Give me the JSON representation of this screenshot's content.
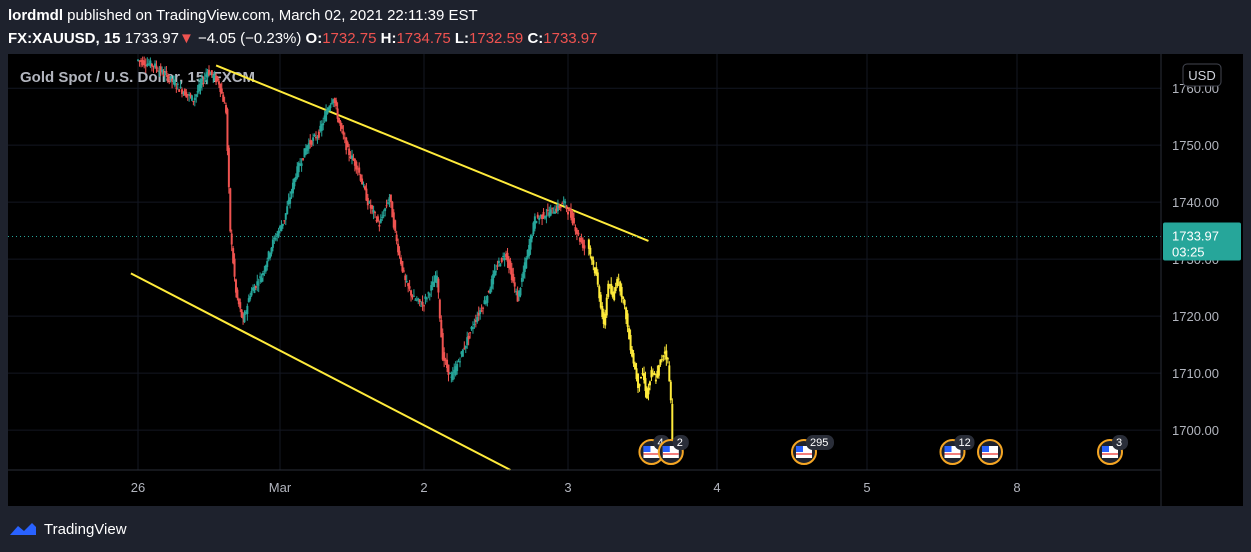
{
  "header": {
    "author": "lordmdl",
    "published_text": "published on TradingView.com, March 02, 2021 22:11:39 EST",
    "symbol": "FX:XAUUSD, 15",
    "price": "1733.97",
    "change_arrow": "▼",
    "change": "−4.05 (−0.23%)",
    "open_label": "O:",
    "open": "1732.75",
    "high_label": "H:",
    "high": "1734.75",
    "low_label": "L:",
    "low": "1732.59",
    "close_label": "C:",
    "close": "1733.97"
  },
  "colors": {
    "background": "#000000",
    "frame": "#1e222d",
    "up_candle": "#26a69a",
    "down_candle": "#ef5350",
    "highlight_candles": "#ffeb3b",
    "trendline": "#ffeb3b",
    "price_tag": "#26a69a"
  },
  "chart_data": {
    "type": "candlestick",
    "title": "Gold Spot / U.S. Dollar, 15, FXCM",
    "currency": "USD",
    "ylim": [
      1693,
      1766
    ],
    "yticks": [
      "1760.00",
      "1750.00",
      "1740.00",
      "1730.00",
      "1720.00",
      "1710.00",
      "1700.00"
    ],
    "ytick_values": [
      1760,
      1750,
      1740,
      1730,
      1720,
      1710,
      1700
    ],
    "xticks": [
      "26",
      "Mar",
      "2",
      "3",
      "4",
      "5",
      "8"
    ],
    "xtick_days": [
      0,
      1,
      2,
      3,
      4,
      5,
      6
    ],
    "current_price": 1733.97,
    "current_price_label": "1733.97",
    "countdown": "03:25",
    "trendlines": [
      {
        "from": [
          0.55,
          1764
        ],
        "to": [
          3.54,
          1733.2
        ]
      },
      {
        "from": [
          -0.05,
          1727.5
        ],
        "to": [
          2.6,
          1693
        ]
      }
    ],
    "price_path": [
      [
        0.0,
        1765
      ],
      [
        0.12,
        1764
      ],
      [
        0.22,
        1762
      ],
      [
        0.3,
        1760
      ],
      [
        0.4,
        1758
      ],
      [
        0.5,
        1763
      ],
      [
        0.58,
        1761
      ],
      [
        0.63,
        1756
      ],
      [
        0.66,
        1735
      ],
      [
        0.7,
        1724
      ],
      [
        0.75,
        1719
      ],
      [
        0.8,
        1724
      ],
      [
        0.88,
        1727
      ],
      [
        0.96,
        1733
      ],
      [
        1.04,
        1737
      ],
      [
        1.12,
        1745
      ],
      [
        1.2,
        1750
      ],
      [
        1.28,
        1752
      ],
      [
        1.35,
        1757
      ],
      [
        1.38,
        1758.5
      ],
      [
        1.42,
        1754
      ],
      [
        1.48,
        1749
      ],
      [
        1.55,
        1746
      ],
      [
        1.62,
        1740
      ],
      [
        1.7,
        1736
      ],
      [
        1.77,
        1741
      ],
      [
        1.82,
        1733
      ],
      [
        1.88,
        1726
      ],
      [
        1.94,
        1723
      ],
      [
        2.0,
        1722
      ],
      [
        2.06,
        1725
      ],
      [
        2.1,
        1727
      ],
      [
        2.14,
        1713
      ],
      [
        2.2,
        1709
      ],
      [
        2.28,
        1714
      ],
      [
        2.36,
        1719
      ],
      [
        2.44,
        1723
      ],
      [
        2.52,
        1729
      ],
      [
        2.58,
        1731
      ],
      [
        2.62,
        1727
      ],
      [
        2.66,
        1723
      ],
      [
        2.72,
        1730
      ],
      [
        2.78,
        1737
      ],
      [
        2.86,
        1738
      ],
      [
        2.94,
        1739
      ],
      [
        2.98,
        1740
      ],
      [
        3.04,
        1737
      ],
      [
        3.08,
        1734
      ],
      [
        3.12,
        1732
      ]
    ],
    "highlight_path": [
      [
        3.14,
        1733
      ],
      [
        3.17,
        1730
      ],
      [
        3.2,
        1727
      ],
      [
        3.23,
        1722
      ],
      [
        3.25,
        1718
      ],
      [
        3.28,
        1726
      ],
      [
        3.31,
        1723
      ],
      [
        3.34,
        1727
      ],
      [
        3.37,
        1724
      ],
      [
        3.4,
        1720
      ],
      [
        3.42,
        1716
      ],
      [
        3.45,
        1712
      ],
      [
        3.48,
        1708
      ],
      [
        3.51,
        1710
      ],
      [
        3.54,
        1706
      ],
      [
        3.57,
        1710
      ],
      [
        3.6,
        1709
      ],
      [
        3.63,
        1712
      ],
      [
        3.66,
        1714
      ],
      [
        3.68,
        1712
      ],
      [
        3.7,
        1705
      ],
      [
        3.71,
        1699
      ]
    ],
    "event_badges": [
      {
        "day": 3.56,
        "label": "4"
      },
      {
        "day": 3.69,
        "label": "2"
      },
      {
        "day": 4.58,
        "label": "295"
      },
      {
        "day": 5.57,
        "label": "12"
      },
      {
        "day": 5.82,
        "label": ""
      },
      {
        "day": 6.62,
        "label": "3"
      }
    ]
  },
  "footer": {
    "brand": "TradingView"
  }
}
